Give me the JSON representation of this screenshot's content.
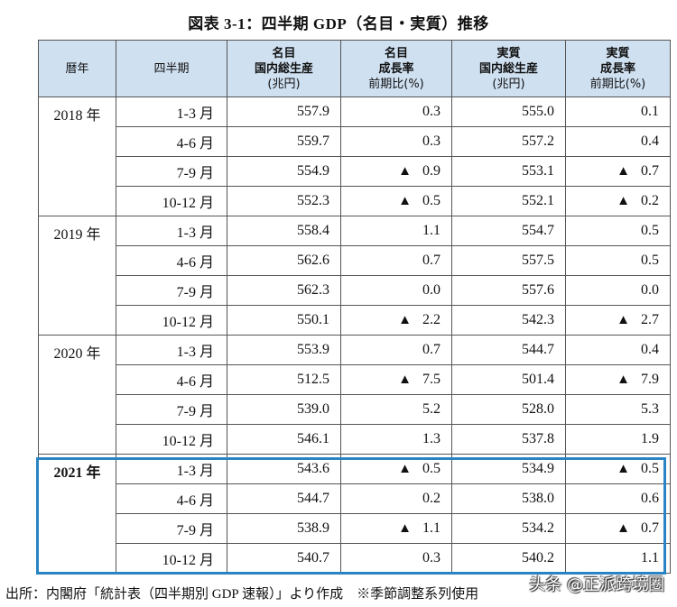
{
  "title": "図表 3-1：四半期 GDP（名目・実質）推移",
  "header": {
    "year": "暦年",
    "quarter": "四半期",
    "nominal_gdp": [
      "名目",
      "国内総生産",
      "(兆円)"
    ],
    "nominal_rate": [
      "名目",
      "成長率",
      "前期比(%)"
    ],
    "real_gdp": [
      "実質",
      "国内総生産",
      "(兆円)"
    ],
    "real_rate": [
      "実質",
      "成長率",
      "前期比(%)"
    ]
  },
  "triangle_symbol": "▲",
  "years": [
    {
      "label": "2018 年",
      "rows": [
        {
          "q": "1-3 月",
          "nominal": "557.9",
          "nominal_rate": "0.3",
          "nominal_neg": false,
          "real": "555.0",
          "real_rate": "0.1",
          "real_neg": false
        },
        {
          "q": "4-6 月",
          "nominal": "559.7",
          "nominal_rate": "0.3",
          "nominal_neg": false,
          "real": "557.2",
          "real_rate": "0.4",
          "real_neg": false
        },
        {
          "q": "7-9 月",
          "nominal": "554.9",
          "nominal_rate": "0.9",
          "nominal_neg": true,
          "real": "553.1",
          "real_rate": "0.7",
          "real_neg": true
        },
        {
          "q": "10-12 月",
          "nominal": "552.3",
          "nominal_rate": "0.5",
          "nominal_neg": true,
          "real": "552.1",
          "real_rate": "0.2",
          "real_neg": true
        }
      ]
    },
    {
      "label": "2019 年",
      "rows": [
        {
          "q": "1-3 月",
          "nominal": "558.4",
          "nominal_rate": "1.1",
          "nominal_neg": false,
          "real": "554.7",
          "real_rate": "0.5",
          "real_neg": false
        },
        {
          "q": "4-6 月",
          "nominal": "562.6",
          "nominal_rate": "0.7",
          "nominal_neg": false,
          "real": "557.5",
          "real_rate": "0.5",
          "real_neg": false
        },
        {
          "q": "7-9 月",
          "nominal": "562.3",
          "nominal_rate": "0.0",
          "nominal_neg": false,
          "real": "557.6",
          "real_rate": "0.0",
          "real_neg": false
        },
        {
          "q": "10-12 月",
          "nominal": "550.1",
          "nominal_rate": "2.2",
          "nominal_neg": true,
          "real": "542.3",
          "real_rate": "2.7",
          "real_neg": true
        }
      ]
    },
    {
      "label": "2020 年",
      "rows": [
        {
          "q": "1-3 月",
          "nominal": "553.9",
          "nominal_rate": "0.7",
          "nominal_neg": false,
          "real": "544.7",
          "real_rate": "0.4",
          "real_neg": false
        },
        {
          "q": "4-6 月",
          "nominal": "512.5",
          "nominal_rate": "7.5",
          "nominal_neg": true,
          "real": "501.4",
          "real_rate": "7.9",
          "real_neg": true
        },
        {
          "q": "7-9 月",
          "nominal": "539.0",
          "nominal_rate": "5.2",
          "nominal_neg": false,
          "real": "528.0",
          "real_rate": "5.3",
          "real_neg": false
        },
        {
          "q": "10-12 月",
          "nominal": "546.1",
          "nominal_rate": "1.3",
          "nominal_neg": false,
          "real": "537.8",
          "real_rate": "1.9",
          "real_neg": false
        }
      ]
    },
    {
      "label": "2021 年",
      "rows": [
        {
          "q": "1-3 月",
          "nominal": "543.6",
          "nominal_rate": "0.5",
          "nominal_neg": true,
          "real": "534.9",
          "real_rate": "0.5",
          "real_neg": true
        },
        {
          "q": "4-6 月",
          "nominal": "544.7",
          "nominal_rate": "0.2",
          "nominal_neg": false,
          "real": "538.0",
          "real_rate": "0.6",
          "real_neg": false
        },
        {
          "q": "7-9 月",
          "nominal": "538.9",
          "nominal_rate": "1.1",
          "nominal_neg": true,
          "real": "534.2",
          "real_rate": "0.7",
          "real_neg": true
        },
        {
          "q": "10-12 月",
          "nominal": "540.7",
          "nominal_rate": "0.3",
          "nominal_neg": false,
          "real": "540.2",
          "real_rate": "1.1",
          "real_neg": false
        }
      ]
    }
  ],
  "footer": "出所：内閣府「統計表（四半期別 GDP 速報）」より作成　※季節調整系列使用",
  "watermark": "头条 @正派跨境圈",
  "colors": {
    "header_bg": "#cfe0f1",
    "highlight_border": "#2a84c4"
  }
}
